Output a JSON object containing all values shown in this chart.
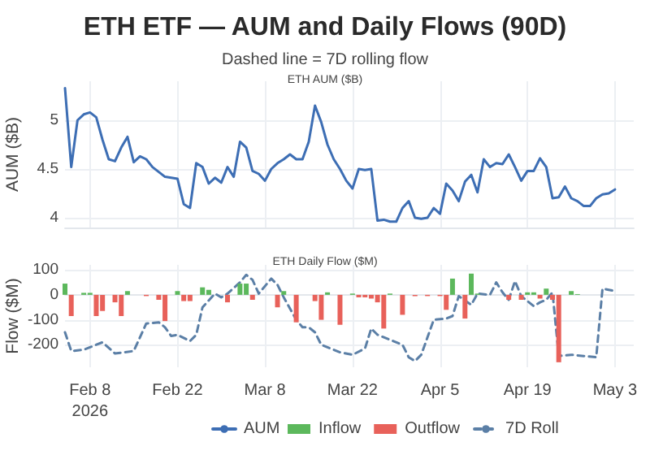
{
  "chart_data": [
    {
      "type": "line",
      "title": "ETH ETF — AUM and Daily Flows (90D)",
      "subtitle": "Dashed line = 7D rolling flow",
      "annotations": [
        "ETH AUM ($B)"
      ],
      "ylabel": "AUM ($B)",
      "x": [
        "2026-02-04",
        "2026-02-05",
        "2026-02-06",
        "2026-02-07",
        "2026-02-08",
        "2026-02-09",
        "2026-02-10",
        "2026-02-11",
        "2026-02-12",
        "2026-02-13",
        "2026-02-14",
        "2026-02-15",
        "2026-02-16",
        "2026-02-17",
        "2026-02-18",
        "2026-02-19",
        "2026-02-20",
        "2026-02-21",
        "2026-02-22",
        "2026-02-23",
        "2026-02-24",
        "2026-02-25",
        "2026-02-26",
        "2026-02-27",
        "2026-02-28",
        "2026-03-01",
        "2026-03-02",
        "2026-03-03",
        "2026-03-04",
        "2026-03-05",
        "2026-03-06",
        "2026-03-07",
        "2026-03-08",
        "2026-03-09",
        "2026-03-10",
        "2026-03-11",
        "2026-03-12",
        "2026-03-13",
        "2026-03-14",
        "2026-03-15",
        "2026-03-16",
        "2026-03-17",
        "2026-03-18",
        "2026-03-19",
        "2026-03-20",
        "2026-03-21",
        "2026-03-22",
        "2026-03-23",
        "2026-03-24",
        "2026-03-25",
        "2026-03-26",
        "2026-03-27",
        "2026-03-28",
        "2026-03-29",
        "2026-03-30",
        "2026-03-31",
        "2026-04-01",
        "2026-04-02",
        "2026-04-03",
        "2026-04-04",
        "2026-04-05",
        "2026-04-06",
        "2026-04-07",
        "2026-04-08",
        "2026-04-09",
        "2026-04-10",
        "2026-04-11",
        "2026-04-12",
        "2026-04-13",
        "2026-04-14",
        "2026-04-15",
        "2026-04-16",
        "2026-04-17",
        "2026-04-18",
        "2026-04-19",
        "2026-04-20",
        "2026-04-21",
        "2026-04-22",
        "2026-04-23",
        "2026-04-24",
        "2026-04-25",
        "2026-04-26",
        "2026-04-27",
        "2026-04-28",
        "2026-04-29",
        "2026-04-30",
        "2026-05-01",
        "2026-05-02",
        "2026-05-03"
      ],
      "series": [
        {
          "name": "AUM",
          "color": "#3d6eb4",
          "values": [
            5.33,
            4.52,
            5.0,
            5.06,
            5.08,
            5.03,
            4.8,
            4.6,
            4.58,
            4.72,
            4.83,
            4.57,
            4.63,
            4.6,
            4.52,
            4.47,
            4.42,
            4.41,
            4.4,
            4.14,
            4.1,
            4.56,
            4.52,
            4.35,
            4.41,
            4.36,
            4.52,
            4.42,
            4.78,
            4.72,
            4.48,
            4.45,
            4.38,
            4.5,
            4.56,
            4.6,
            4.65,
            4.6,
            4.6,
            4.78,
            5.15,
            4.98,
            4.75,
            4.6,
            4.5,
            4.38,
            4.3,
            4.5,
            4.49,
            4.5,
            3.97,
            3.98,
            3.96,
            3.96,
            4.1,
            4.17,
            4.0,
            3.99,
            4.0,
            4.1,
            4.04,
            4.35,
            4.28,
            4.17,
            4.37,
            4.44,
            4.26,
            4.6,
            4.52,
            4.56,
            4.55,
            4.65,
            4.52,
            4.38,
            4.48,
            4.48,
            4.61,
            4.52,
            4.2,
            4.21,
            4.32,
            4.2,
            4.17,
            4.12,
            4.12,
            4.2,
            4.24,
            4.25,
            4.29
          ]
        }
      ],
      "xlim": [
        "2026-02-04",
        "2026-05-06"
      ],
      "xticks": [
        {
          "value": "2026-02-08",
          "label": null
        },
        {
          "value": "2026-02-22",
          "label": null
        },
        {
          "value": "2026-03-08",
          "label": null
        },
        {
          "value": "2026-03-22",
          "label": null
        },
        {
          "value": "2026-04-05",
          "label": null
        },
        {
          "value": "2026-04-19",
          "label": null
        },
        {
          "value": "2026-05-03",
          "label": null
        }
      ],
      "ylim": [
        3.9,
        5.4
      ],
      "yticks": [
        4,
        4.5,
        5
      ],
      "grid": true,
      "legend": "bottom",
      "tick_labels": "y",
      "marker": "none"
    },
    {
      "type": "bar",
      "title": "ETH Daily Flow ($M)",
      "ylabel": "Flow ($M)",
      "series": [
        {
          "name": "Inflow",
          "color": "#5cb85c",
          "x": [
            "2026-02-04",
            "2026-02-07",
            "2026-02-08",
            "2026-02-14",
            "2026-02-22",
            "2026-02-26",
            "2026-02-27",
            "2026-03-04",
            "2026-03-05",
            "2026-03-11",
            "2026-03-18",
            "2026-03-22",
            "2026-03-28",
            "2026-04-07",
            "2026-04-10",
            "2026-04-11",
            "2026-04-19",
            "2026-04-20",
            "2026-04-22",
            "2026-04-26",
            "2026-04-27"
          ],
          "values": [
            45,
            8,
            8,
            15,
            15,
            30,
            20,
            45,
            45,
            15,
            10,
            5,
            5,
            65,
            85,
            5,
            10,
            10,
            25,
            15,
            3
          ]
        },
        {
          "name": "Outflow",
          "color": "#e8615a",
          "x": [
            "2026-02-05",
            "2026-02-09",
            "2026-02-10",
            "2026-02-12",
            "2026-02-13",
            "2026-02-17",
            "2026-02-19",
            "2026-02-20",
            "2026-02-23",
            "2026-02-24",
            "2026-03-02",
            "2026-03-06",
            "2026-03-10",
            "2026-03-13",
            "2026-03-16",
            "2026-03-17",
            "2026-03-20",
            "2026-03-23",
            "2026-03-24",
            "2026-03-25",
            "2026-03-26",
            "2026-03-27",
            "2026-03-30",
            "2026-04-01",
            "2026-04-03",
            "2026-04-05",
            "2026-04-06",
            "2026-04-09",
            "2026-04-16",
            "2026-04-18",
            "2026-04-21",
            "2026-04-23",
            "2026-04-24"
          ],
          "values": [
            -85,
            -85,
            -65,
            -30,
            -85,
            -5,
            -20,
            -105,
            -25,
            -25,
            -30,
            -20,
            -50,
            -110,
            -25,
            -100,
            -120,
            -10,
            -10,
            -15,
            -30,
            -135,
            -80,
            -5,
            -5,
            -5,
            -60,
            -95,
            -20,
            -20,
            -15,
            -20,
            -270
          ]
        },
        {
          "name": "7D Roll",
          "type": "line",
          "line_style": "dashed",
          "color": "#5b7fa6",
          "x": [
            "2026-02-04",
            "2026-02-05",
            "2026-02-07",
            "2026-02-10",
            "2026-02-12",
            "2026-02-15",
            "2026-02-16",
            "2026-02-17",
            "2026-02-19",
            "2026-02-20",
            "2026-02-21",
            "2026-02-22",
            "2026-02-24",
            "2026-02-25",
            "2026-02-26",
            "2026-02-28",
            "2026-03-01",
            "2026-03-02",
            "2026-03-04",
            "2026-03-05",
            "2026-03-06",
            "2026-03-07",
            "2026-03-09",
            "2026-03-10",
            "2026-03-11",
            "2026-03-13",
            "2026-03-14",
            "2026-03-15",
            "2026-03-16",
            "2026-03-17",
            "2026-03-20",
            "2026-03-22",
            "2026-03-24",
            "2026-03-25",
            "2026-03-26",
            "2026-03-28",
            "2026-03-30",
            "2026-03-31",
            "2026-04-01",
            "2026-04-02",
            "2026-04-04",
            "2026-04-06",
            "2026-04-07",
            "2026-04-08",
            "2026-04-10",
            "2026-04-11",
            "2026-04-13",
            "2026-04-14",
            "2026-04-15",
            "2026-04-16",
            "2026-04-17",
            "2026-04-18",
            "2026-04-20",
            "2026-04-21",
            "2026-04-22",
            "2026-04-23",
            "2026-04-24",
            "2026-04-26",
            "2026-04-28",
            "2026-04-30",
            "2026-05-01",
            "2026-05-02",
            "2026-05-03"
          ],
          "values": [
            -150,
            -225,
            -220,
            -190,
            -235,
            -225,
            -170,
            -115,
            -110,
            -130,
            -165,
            -160,
            -185,
            -160,
            -50,
            5,
            -10,
            5,
            50,
            80,
            60,
            5,
            65,
            40,
            -10,
            -100,
            -130,
            -130,
            -150,
            -200,
            -230,
            -240,
            -215,
            -135,
            -160,
            -180,
            -200,
            -250,
            -265,
            -240,
            -100,
            -95,
            -85,
            -5,
            -40,
            5,
            0,
            50,
            10,
            -20,
            55,
            -5,
            -45,
            -30,
            -20,
            10,
            -245,
            -240,
            -245,
            -250,
            25,
            20,
            15
          ]
        }
      ],
      "xlim": [
        "2026-02-04",
        "2026-05-06"
      ],
      "xticks": [
        {
          "value": "2026-02-08",
          "label": "Feb 8\n2026"
        },
        {
          "value": "2026-02-22",
          "label": "Feb 22"
        },
        {
          "value": "2026-03-08",
          "label": "Mar 8"
        },
        {
          "value": "2026-03-22",
          "label": "Mar 22"
        },
        {
          "value": "2026-04-05",
          "label": "Apr 5"
        },
        {
          "value": "2026-04-19",
          "label": "Apr 19"
        },
        {
          "value": "2026-05-03",
          "label": "May 3"
        }
      ],
      "ylim": [
        -290,
        120
      ],
      "yticks": [
        -200,
        -100,
        0,
        100
      ],
      "grid": true,
      "legend": "bottom",
      "marker": "none"
    }
  ]
}
